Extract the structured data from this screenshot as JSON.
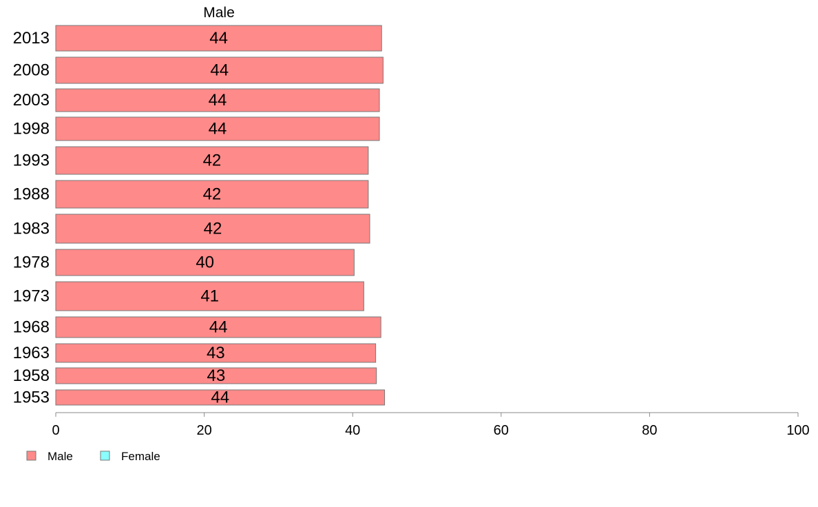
{
  "chart_data": {
    "type": "bar",
    "orientation": "horizontal",
    "panel_title": "Male",
    "categories": [
      "2013",
      "2008",
      "2003",
      "1998",
      "1993",
      "1988",
      "1983",
      "1978",
      "1973",
      "1968",
      "1963",
      "1958",
      "1953"
    ],
    "series": [
      {
        "name": "Male",
        "color": "#ff8a8a",
        "values": [
          43.9,
          44.1,
          43.6,
          43.6,
          42.1,
          42.1,
          42.3,
          40.2,
          41.5,
          43.8,
          43.1,
          43.2,
          44.3
        ],
        "labels": [
          "44",
          "44",
          "44",
          "44",
          "42",
          "42",
          "42",
          "40",
          "41",
          "44",
          "43",
          "43",
          "44"
        ]
      }
    ],
    "xlim": [
      0,
      100
    ],
    "xticks": [
      "0",
      "20",
      "40",
      "60",
      "80",
      "100"
    ],
    "grid": false,
    "legend_position": "bottom-left",
    "legend": [
      {
        "label": "Male",
        "color": "#ff8a8a"
      },
      {
        "label": "Female",
        "color": "#8affff"
      }
    ]
  }
}
